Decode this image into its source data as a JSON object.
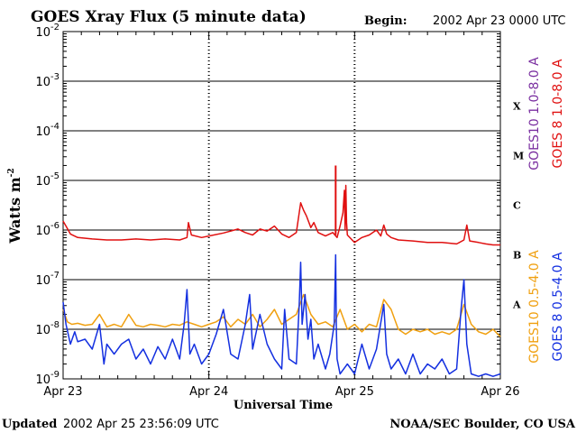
{
  "header": {
    "title": "GOES Xray Flux (5 minute data)",
    "begin_label": "Begin:",
    "begin_value": "2002 Apr 23 0000 UTC"
  },
  "footer": {
    "updated_label": "Updated",
    "updated_value": "2002 Apr 25 23:56:09 UTC",
    "credit": "NOAA/SEC Boulder, CO USA"
  },
  "colors": {
    "goes10_long": "#7a2fa0",
    "goes8_long": "#e01010",
    "goes10_short": "#f0a010",
    "goes8_short": "#1430e0"
  },
  "chart_data": {
    "type": "line",
    "title": "GOES Xray Flux (5 minute data)",
    "xlabel": "Universal Time",
    "ylabel": "Watts m",
    "ylabel_sup": "-2",
    "yscale": "log",
    "ylim": [
      1e-09,
      0.01
    ],
    "xlim_days": [
      0,
      3
    ],
    "x_ticks": [
      {
        "day": 0,
        "label": "Apr 23"
      },
      {
        "day": 1,
        "label": "Apr 24"
      },
      {
        "day": 2,
        "label": "Apr 25"
      },
      {
        "day": 3,
        "label": "Apr 26"
      }
    ],
    "y_ticks": [
      {
        "exp": -2,
        "base": "10",
        "sup": "-2"
      },
      {
        "exp": -3,
        "base": "10",
        "sup": "-3"
      },
      {
        "exp": -4,
        "base": "10",
        "sup": "-4"
      },
      {
        "exp": -5,
        "base": "10",
        "sup": "-5"
      },
      {
        "exp": -6,
        "base": "10",
        "sup": "-6"
      },
      {
        "exp": -7,
        "base": "10",
        "sup": "-7"
      },
      {
        "exp": -8,
        "base": "10",
        "sup": "-8"
      },
      {
        "exp": -9,
        "base": "10",
        "sup": "-9"
      }
    ],
    "flare_classes": [
      {
        "label": "X",
        "exp": -3.5
      },
      {
        "label": "M",
        "exp": -4.5
      },
      {
        "label": "C",
        "exp": -5.5
      },
      {
        "label": "B",
        "exp": -6.5
      },
      {
        "label": "A",
        "exp": -7.5
      }
    ],
    "legend": [
      {
        "label": "GOES10 1.0-8.0 A",
        "color_key": "goes10_long"
      },
      {
        "label": "GOES 8 1.0-8.0 A",
        "color_key": "goes8_long"
      },
      {
        "label": "GOES10 0.5-4.0 A",
        "color_key": "goes10_short"
      },
      {
        "label": "GOES 8 0.5-4.0 A",
        "color_key": "goes8_short"
      }
    ],
    "series": [
      {
        "name": "GOES 8 1.0-8.0 A",
        "color_key": "goes8_long",
        "points": [
          [
            0,
            -5.82
          ],
          [
            0.02,
            -5.92
          ],
          [
            0.05,
            -6.08
          ],
          [
            0.1,
            -6.15
          ],
          [
            0.2,
            -6.18
          ],
          [
            0.3,
            -6.2
          ],
          [
            0.4,
            -6.2
          ],
          [
            0.5,
            -6.18
          ],
          [
            0.6,
            -6.2
          ],
          [
            0.7,
            -6.18
          ],
          [
            0.8,
            -6.2
          ],
          [
            0.85,
            -6.15
          ],
          [
            0.86,
            -5.85
          ],
          [
            0.88,
            -6.1
          ],
          [
            0.95,
            -6.15
          ],
          [
            1.0,
            -6.12
          ],
          [
            1.1,
            -6.06
          ],
          [
            1.15,
            -6.02
          ],
          [
            1.2,
            -5.98
          ],
          [
            1.25,
            -6.05
          ],
          [
            1.3,
            -6.1
          ],
          [
            1.35,
            -5.98
          ],
          [
            1.4,
            -6.02
          ],
          [
            1.45,
            -5.92
          ],
          [
            1.5,
            -6.08
          ],
          [
            1.55,
            -6.15
          ],
          [
            1.6,
            -6.05
          ],
          [
            1.63,
            -5.45
          ],
          [
            1.65,
            -5.6
          ],
          [
            1.67,
            -5.72
          ],
          [
            1.7,
            -5.95
          ],
          [
            1.72,
            -5.85
          ],
          [
            1.75,
            -6.05
          ],
          [
            1.8,
            -6.12
          ],
          [
            1.85,
            -6.05
          ],
          [
            1.88,
            -6.15
          ],
          [
            1.9,
            -5.92
          ],
          [
            1.92,
            -5.65
          ],
          [
            1.93,
            -5.2
          ],
          [
            1.935,
            -6.0
          ],
          [
            1.94,
            -5.1
          ],
          [
            1.945,
            -5.85
          ],
          [
            1.95,
            -6.1
          ],
          [
            2.0,
            -6.25
          ],
          [
            2.05,
            -6.15
          ],
          [
            2.1,
            -6.1
          ],
          [
            2.15,
            -6.0
          ],
          [
            2.18,
            -6.12
          ],
          [
            2.2,
            -5.9
          ],
          [
            2.22,
            -6.08
          ],
          [
            2.25,
            -6.15
          ],
          [
            2.3,
            -6.2
          ],
          [
            2.4,
            -6.22
          ],
          [
            2.5,
            -6.25
          ],
          [
            2.6,
            -6.25
          ],
          [
            2.7,
            -6.28
          ],
          [
            2.75,
            -6.2
          ],
          [
            2.77,
            -5.9
          ],
          [
            2.79,
            -6.22
          ],
          [
            2.85,
            -6.25
          ],
          [
            2.9,
            -6.28
          ],
          [
            2.95,
            -6.3
          ],
          [
            3.0,
            -6.3
          ]
        ],
        "spikes": [
          [
            1.87,
            -4.7
          ]
        ]
      },
      {
        "name": "GOES10 0.5-4.0 A",
        "color_key": "goes10_short",
        "points": [
          [
            0,
            -7.6
          ],
          [
            0.03,
            -7.85
          ],
          [
            0.06,
            -7.9
          ],
          [
            0.1,
            -7.88
          ],
          [
            0.15,
            -7.92
          ],
          [
            0.2,
            -7.9
          ],
          [
            0.25,
            -7.7
          ],
          [
            0.3,
            -7.95
          ],
          [
            0.35,
            -7.9
          ],
          [
            0.4,
            -7.95
          ],
          [
            0.45,
            -7.7
          ],
          [
            0.5,
            -7.92
          ],
          [
            0.55,
            -7.95
          ],
          [
            0.6,
            -7.9
          ],
          [
            0.65,
            -7.92
          ],
          [
            0.7,
            -7.95
          ],
          [
            0.75,
            -7.9
          ],
          [
            0.8,
            -7.92
          ],
          [
            0.85,
            -7.85
          ],
          [
            0.9,
            -7.9
          ],
          [
            0.95,
            -7.95
          ],
          [
            1.0,
            -7.9
          ],
          [
            1.05,
            -7.85
          ],
          [
            1.1,
            -7.75
          ],
          [
            1.15,
            -7.95
          ],
          [
            1.2,
            -7.8
          ],
          [
            1.25,
            -7.9
          ],
          [
            1.3,
            -7.7
          ],
          [
            1.35,
            -7.95
          ],
          [
            1.4,
            -7.8
          ],
          [
            1.45,
            -7.6
          ],
          [
            1.5,
            -7.9
          ],
          [
            1.55,
            -7.8
          ],
          [
            1.6,
            -7.7
          ],
          [
            1.65,
            -7.3
          ],
          [
            1.7,
            -7.7
          ],
          [
            1.75,
            -7.9
          ],
          [
            1.8,
            -7.85
          ],
          [
            1.85,
            -7.95
          ],
          [
            1.9,
            -7.6
          ],
          [
            1.95,
            -8.0
          ],
          [
            2.0,
            -7.9
          ],
          [
            2.05,
            -8.05
          ],
          [
            2.1,
            -7.9
          ],
          [
            2.15,
            -7.95
          ],
          [
            2.2,
            -7.4
          ],
          [
            2.25,
            -7.6
          ],
          [
            2.3,
            -8.0
          ],
          [
            2.35,
            -8.1
          ],
          [
            2.4,
            -8.0
          ],
          [
            2.45,
            -8.05
          ],
          [
            2.5,
            -8.0
          ],
          [
            2.55,
            -8.1
          ],
          [
            2.6,
            -8.05
          ],
          [
            2.65,
            -8.1
          ],
          [
            2.7,
            -8.0
          ],
          [
            2.75,
            -7.5
          ],
          [
            2.8,
            -7.9
          ],
          [
            2.85,
            -8.05
          ],
          [
            2.9,
            -8.1
          ],
          [
            2.95,
            -8.0
          ],
          [
            3.0,
            -8.15
          ]
        ]
      },
      {
        "name": "GOES 8 0.5-4.0 A",
        "color_key": "goes8_short",
        "points": [
          [
            0,
            -7.45
          ],
          [
            0.02,
            -7.9
          ],
          [
            0.05,
            -8.3
          ],
          [
            0.08,
            -8.05
          ],
          [
            0.1,
            -8.25
          ],
          [
            0.15,
            -8.2
          ],
          [
            0.2,
            -8.4
          ],
          [
            0.25,
            -7.9
          ],
          [
            0.28,
            -8.7
          ],
          [
            0.3,
            -8.3
          ],
          [
            0.35,
            -8.5
          ],
          [
            0.4,
            -8.3
          ],
          [
            0.45,
            -8.2
          ],
          [
            0.5,
            -8.6
          ],
          [
            0.55,
            -8.4
          ],
          [
            0.6,
            -8.7
          ],
          [
            0.65,
            -8.35
          ],
          [
            0.7,
            -8.6
          ],
          [
            0.75,
            -8.2
          ],
          [
            0.8,
            -8.6
          ],
          [
            0.83,
            -7.9
          ],
          [
            0.85,
            -7.2
          ],
          [
            0.87,
            -8.5
          ],
          [
            0.9,
            -8.3
          ],
          [
            0.95,
            -8.7
          ],
          [
            1.0,
            -8.5
          ],
          [
            1.05,
            -8.1
          ],
          [
            1.1,
            -7.6
          ],
          [
            1.15,
            -8.5
          ],
          [
            1.2,
            -8.6
          ],
          [
            1.25,
            -7.9
          ],
          [
            1.28,
            -7.3
          ],
          [
            1.3,
            -8.4
          ],
          [
            1.35,
            -7.7
          ],
          [
            1.4,
            -8.3
          ],
          [
            1.45,
            -8.6
          ],
          [
            1.5,
            -8.8
          ],
          [
            1.52,
            -7.6
          ],
          [
            1.55,
            -8.6
          ],
          [
            1.6,
            -8.7
          ],
          [
            1.62,
            -7.5
          ],
          [
            1.63,
            -6.65
          ],
          [
            1.64,
            -7.9
          ],
          [
            1.66,
            -7.3
          ],
          [
            1.68,
            -8.2
          ],
          [
            1.7,
            -7.8
          ],
          [
            1.72,
            -8.6
          ],
          [
            1.75,
            -8.3
          ],
          [
            1.8,
            -8.8
          ],
          [
            1.83,
            -8.5
          ],
          [
            1.86,
            -7.9
          ],
          [
            1.87,
            -6.5
          ],
          [
            1.875,
            -8.0
          ],
          [
            1.88,
            -8.6
          ],
          [
            1.9,
            -8.9
          ],
          [
            1.95,
            -8.7
          ],
          [
            2.0,
            -8.9
          ],
          [
            2.05,
            -8.3
          ],
          [
            2.1,
            -8.8
          ],
          [
            2.15,
            -8.4
          ],
          [
            2.2,
            -7.5
          ],
          [
            2.22,
            -8.5
          ],
          [
            2.25,
            -8.8
          ],
          [
            2.3,
            -8.6
          ],
          [
            2.35,
            -8.9
          ],
          [
            2.4,
            -8.5
          ],
          [
            2.45,
            -8.9
          ],
          [
            2.5,
            -8.7
          ],
          [
            2.55,
            -8.8
          ],
          [
            2.6,
            -8.6
          ],
          [
            2.65,
            -8.9
          ],
          [
            2.7,
            -8.8
          ],
          [
            2.73,
            -7.6
          ],
          [
            2.75,
            -7.0
          ],
          [
            2.77,
            -8.3
          ],
          [
            2.8,
            -8.9
          ],
          [
            2.85,
            -8.95
          ],
          [
            2.9,
            -8.9
          ],
          [
            2.95,
            -8.95
          ],
          [
            3.0,
            -8.9
          ]
        ]
      }
    ]
  }
}
